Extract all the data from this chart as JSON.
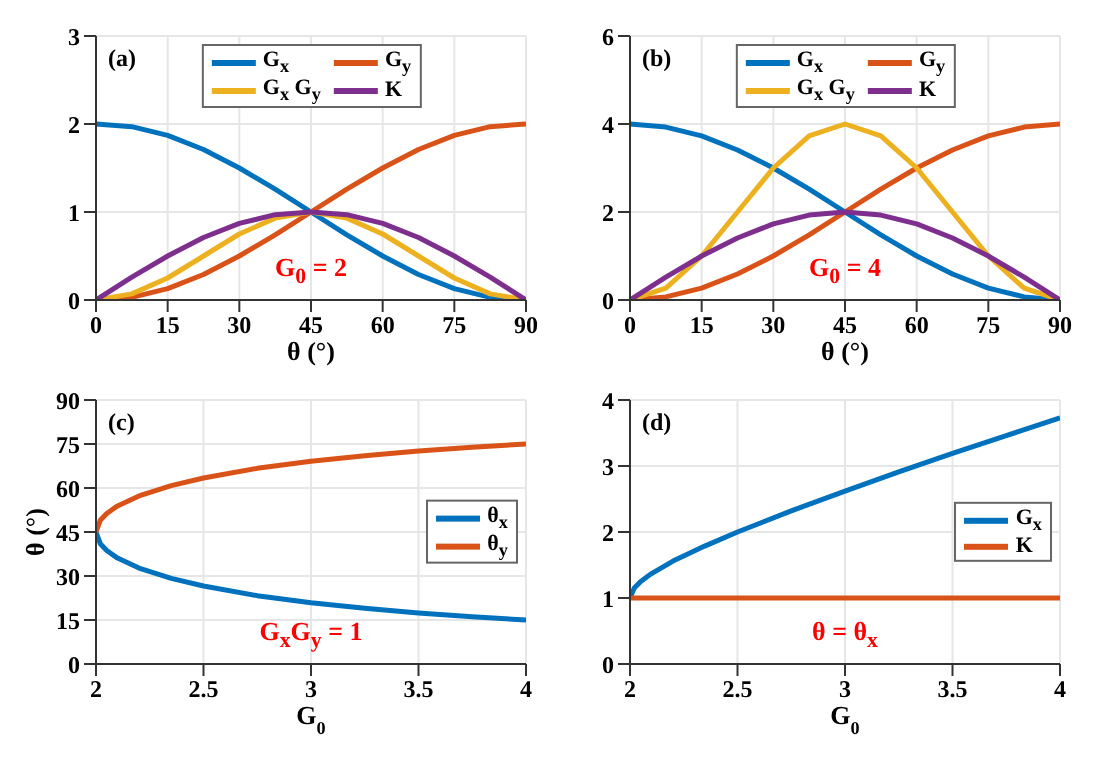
{
  "chart_data": [
    {
      "type": "line",
      "xlabel": "θ (°)",
      "annotations": [
        "(a)",
        "G$_{0}$ = 2"
      ],
      "legend": "top",
      "grid": true,
      "xlim": [
        0,
        90
      ],
      "xticks": [
        0,
        15,
        30,
        45,
        60,
        75,
        90
      ],
      "ylim": [
        0,
        3
      ],
      "yticks": [
        0,
        1,
        2,
        3
      ],
      "x": [
        0,
        7.5,
        15,
        22.5,
        30,
        37.5,
        45,
        52.5,
        60,
        67.5,
        75,
        82.5,
        90
      ],
      "series": [
        {
          "name": "G$_{x}$",
          "color": "#0072bd",
          "values": [
            2,
            1.97,
            1.87,
            1.71,
            1.5,
            1.26,
            1,
            0.74,
            0.5,
            0.29,
            0.13,
            0.03,
            0
          ]
        },
        {
          "name": "G$_{y}$",
          "color": "#d95319",
          "values": [
            0,
            0.03,
            0.13,
            0.29,
            0.5,
            0.74,
            1,
            1.26,
            1.5,
            1.71,
            1.87,
            1.97,
            2
          ]
        },
        {
          "name": "G$_{x}$ G$_{y}$",
          "color": "#edb120",
          "values": [
            0,
            0.07,
            0.25,
            0.5,
            0.75,
            0.93,
            1,
            0.93,
            0.75,
            0.5,
            0.25,
            0.07,
            0
          ]
        },
        {
          "name": "K",
          "color": "#7e2f8e",
          "values": [
            0,
            0.26,
            0.5,
            0.71,
            0.87,
            0.97,
            1,
            0.97,
            0.87,
            0.71,
            0.5,
            0.26,
            0
          ]
        }
      ]
    },
    {
      "type": "line",
      "xlabel": "θ (°)",
      "annotations": [
        "(b)",
        "G$_{0}$ = 4"
      ],
      "legend": "top",
      "grid": true,
      "xlim": [
        0,
        90
      ],
      "xticks": [
        0,
        15,
        30,
        45,
        60,
        75,
        90
      ],
      "ylim": [
        0,
        6
      ],
      "yticks": [
        0,
        2,
        4,
        6
      ],
      "x": [
        0,
        7.5,
        15,
        22.5,
        30,
        37.5,
        45,
        52.5,
        60,
        67.5,
        75,
        82.5,
        90
      ],
      "series": [
        {
          "name": "G$_{x}$",
          "color": "#0072bd",
          "values": [
            4,
            3.93,
            3.73,
            3.41,
            3,
            2.52,
            2,
            1.48,
            1,
            0.59,
            0.27,
            0.07,
            0
          ]
        },
        {
          "name": "G$_{y}$",
          "color": "#d95319",
          "values": [
            0,
            0.07,
            0.27,
            0.59,
            1,
            1.48,
            2,
            2.52,
            3,
            3.41,
            3.73,
            3.93,
            4
          ]
        },
        {
          "name": "G$_{x}$ G$_{y}$",
          "color": "#edb120",
          "values": [
            0,
            0.27,
            1,
            2,
            3,
            3.73,
            4,
            3.73,
            3,
            2,
            1,
            0.27,
            0
          ]
        },
        {
          "name": "K",
          "color": "#7e2f8e",
          "values": [
            0,
            0.52,
            1,
            1.41,
            1.73,
            1.93,
            2,
            1.93,
            1.73,
            1.41,
            1,
            0.52,
            0
          ]
        }
      ]
    },
    {
      "type": "line",
      "xlabel": "G$_{0}$",
      "ylabel": "θ (°)",
      "annotations": [
        "(c)",
        "G$_{x}$G$_{y}$ = 1"
      ],
      "legend": "right",
      "grid": true,
      "xlim": [
        2,
        4
      ],
      "xticks": [
        2,
        2.5,
        3,
        3.5,
        4
      ],
      "ylim": [
        0,
        90
      ],
      "yticks": [
        0,
        15,
        30,
        45,
        60,
        75,
        90
      ],
      "x": [
        2,
        2.02,
        2.05,
        2.1,
        2.2,
        2.35,
        2.5,
        2.75,
        3,
        3.25,
        3.5,
        3.75,
        4
      ],
      "series": [
        {
          "name": "θ$_{x}$",
          "color": "#0072bd",
          "values": [
            45,
            41,
            38.7,
            36.1,
            32.7,
            29.2,
            26.6,
            23.3,
            20.9,
            19,
            17.4,
            16.1,
            15
          ]
        },
        {
          "name": "θ$_{y}$",
          "color": "#d95319",
          "values": [
            45,
            49,
            51.3,
            53.9,
            57.3,
            60.8,
            63.4,
            66.7,
            69.1,
            71,
            72.6,
            73.9,
            75
          ]
        }
      ]
    },
    {
      "type": "line",
      "xlabel": "G$_{0}$",
      "annotations": [
        "(d)",
        "θ = θ$_{x}$"
      ],
      "legend": "right",
      "grid": true,
      "xlim": [
        2,
        4
      ],
      "xticks": [
        2,
        2.5,
        3,
        3.5,
        4
      ],
      "ylim": [
        0,
        4
      ],
      "yticks": [
        0,
        1,
        2,
        3,
        4
      ],
      "series": [
        {
          "name": "G$_{x}$",
          "color": "#0072bd",
          "x": [
            2,
            2.02,
            2.05,
            2.1,
            2.2,
            2.35,
            2.5,
            2.75,
            3,
            3.25,
            3.5,
            3.75,
            4
          ],
          "values": [
            1,
            1.15,
            1.25,
            1.37,
            1.56,
            1.79,
            2,
            2.32,
            2.62,
            2.91,
            3.19,
            3.46,
            3.73
          ]
        },
        {
          "name": "K",
          "color": "#d95319",
          "x": [
            2,
            4
          ],
          "values": [
            1,
            1
          ]
        }
      ]
    }
  ]
}
